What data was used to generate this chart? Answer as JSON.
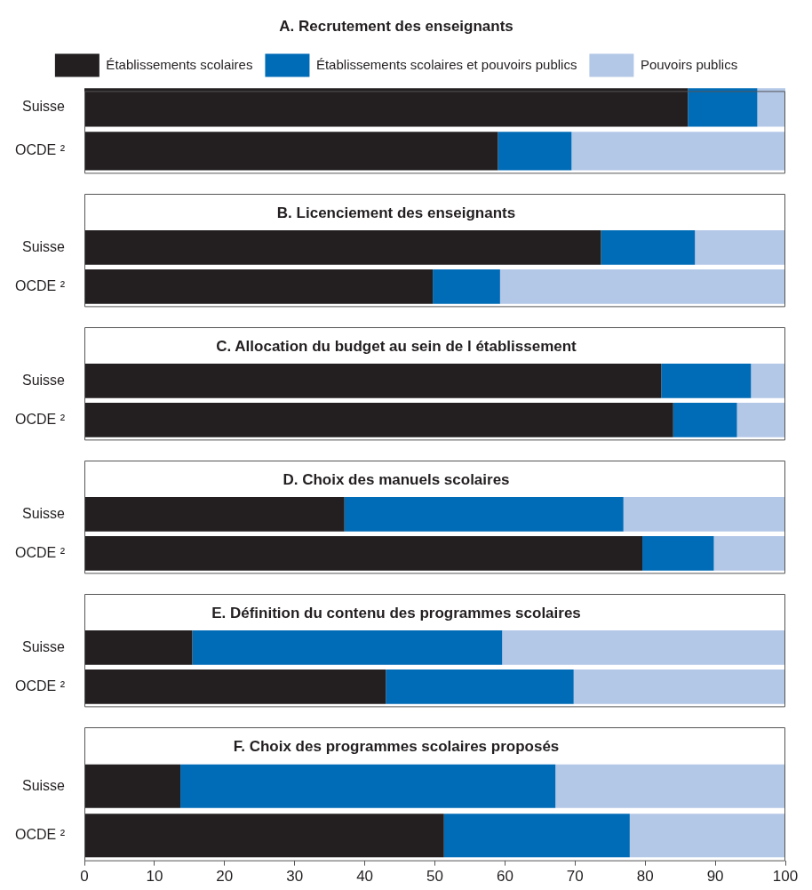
{
  "chart_data": [
    {
      "type": "bar",
      "orientation": "horizontal",
      "stacked": true,
      "title": "A. Recrutement des enseignants",
      "categories": [
        "Suisse",
        "OCDE ²"
      ],
      "legend": "top",
      "tick_labels": "y",
      "xlim": [
        0,
        100
      ],
      "xticks": [
        0,
        10,
        20,
        30,
        40,
        50,
        60,
        70,
        80,
        90,
        100
      ],
      "series": [
        {
          "name": "Établissements scolaires",
          "color": "#231f20",
          "values": [
            86.1,
            59.0
          ]
        },
        {
          "name": "Établissements scolaires et pouvoirs publics",
          "color": "#006bb6",
          "values": [
            9.9,
            10.5
          ]
        },
        {
          "name": "Pouvoirs publics",
          "color": "#b3c7e7",
          "values": [
            4.0,
            30.5
          ]
        }
      ]
    },
    {
      "type": "bar",
      "orientation": "horizontal",
      "stacked": true,
      "title": "B. Licenciement des enseignants",
      "categories": [
        "Suisse",
        "OCDE ²"
      ],
      "tick_labels": "y",
      "xlim": [
        0,
        100
      ],
      "xticks": [
        0,
        10,
        20,
        30,
        40,
        50,
        60,
        70,
        80,
        90,
        100
      ],
      "series": [
        {
          "color": "#231f20",
          "values": [
            73.7,
            49.7
          ]
        },
        {
          "color": "#006bb6",
          "values": [
            13.4,
            9.6
          ]
        },
        {
          "color": "#b3c7e7",
          "values": [
            12.9,
            40.7
          ]
        }
      ]
    },
    {
      "type": "bar",
      "orientation": "horizontal",
      "stacked": true,
      "title": "C. Allocation du budget au sein de l établissement",
      "categories": [
        "Suisse",
        "OCDE ²"
      ],
      "tick_labels": "y",
      "xlim": [
        0,
        100
      ],
      "xticks": [
        0,
        10,
        20,
        30,
        40,
        50,
        60,
        70,
        80,
        90,
        100
      ],
      "series": [
        {
          "color": "#231f20",
          "values": [
            82.3,
            84.0
          ]
        },
        {
          "color": "#006bb6",
          "values": [
            12.8,
            9.1
          ]
        },
        {
          "color": "#b3c7e7",
          "values": [
            4.9,
            6.9
          ]
        }
      ]
    },
    {
      "type": "bar",
      "orientation": "horizontal",
      "stacked": true,
      "title": "D. Choix des manuels scolaires",
      "categories": [
        "Suisse",
        "OCDE ²"
      ],
      "tick_labels": "y",
      "xlim": [
        0,
        100
      ],
      "xticks": [
        0,
        10,
        20,
        30,
        40,
        50,
        60,
        70,
        80,
        90,
        100
      ],
      "series": [
        {
          "color": "#231f20",
          "values": [
            37.1,
            79.6
          ]
        },
        {
          "color": "#006bb6",
          "values": [
            39.8,
            10.2
          ]
        },
        {
          "color": "#b3c7e7",
          "values": [
            23.1,
            10.2
          ]
        }
      ]
    },
    {
      "type": "bar",
      "orientation": "horizontal",
      "stacked": true,
      "title": "E. Définition du contenu des programmes scolaires",
      "categories": [
        "Suisse",
        "OCDE ²"
      ],
      "tick_labels": "y",
      "xlim": [
        0,
        100
      ],
      "xticks": [
        0,
        10,
        20,
        30,
        40,
        50,
        60,
        70,
        80,
        90,
        100
      ],
      "series": [
        {
          "color": "#231f20",
          "values": [
            15.4,
            43.0
          ]
        },
        {
          "color": "#006bb6",
          "values": [
            44.2,
            26.8
          ]
        },
        {
          "color": "#b3c7e7",
          "values": [
            40.4,
            30.2
          ]
        }
      ]
    },
    {
      "type": "bar",
      "orientation": "horizontal",
      "stacked": true,
      "title": "F. Choix des programmes scolaires proposés",
      "categories": [
        "Suisse",
        "OCDE ²"
      ],
      "xlim": [
        0,
        100
      ],
      "xticks": [
        0,
        10,
        20,
        30,
        40,
        50,
        60,
        70,
        80,
        90,
        100
      ],
      "series": [
        {
          "color": "#231f20",
          "values": [
            13.7,
            51.3
          ]
        },
        {
          "color": "#006bb6",
          "values": [
            53.5,
            26.5
          ]
        },
        {
          "color": "#b3c7e7",
          "values": [
            32.8,
            22.2
          ]
        }
      ]
    }
  ]
}
